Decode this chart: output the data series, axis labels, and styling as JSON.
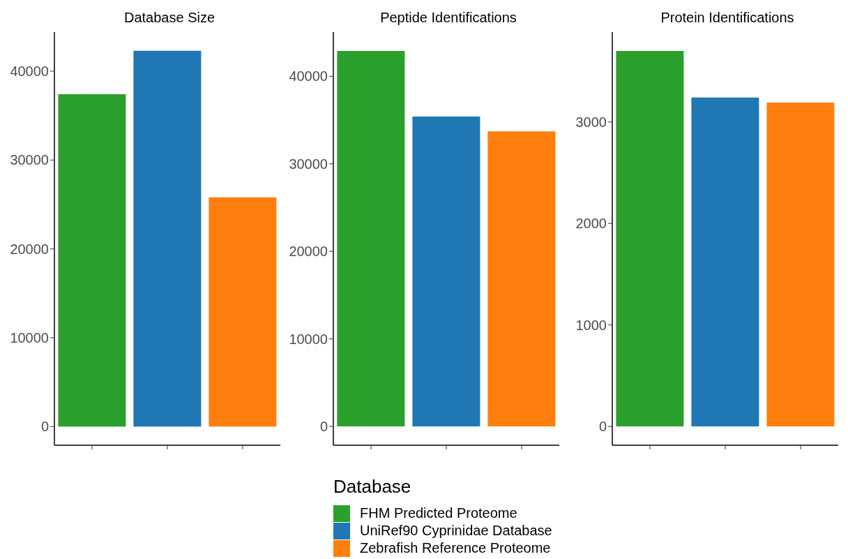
{
  "chart_data": [
    {
      "type": "bar",
      "title": "Database Size",
      "categories": [
        null,
        null,
        null
      ],
      "stacked": true,
      "tick_labels": "y",
      "ylim": [
        -2100,
        44400
      ],
      "yticks": [
        0,
        10000,
        20000,
        30000,
        40000
      ],
      "series": [
        {
          "color": "#2ca02c",
          "values": [
            37400,
            null,
            null
          ]
        },
        {
          "color": "#1f77b4",
          "values": [
            null,
            42300,
            null
          ]
        },
        {
          "color": "#ff7f0e",
          "values": [
            null,
            null,
            25800
          ]
        }
      ]
    },
    {
      "type": "bar",
      "title": "Peptide Identifications",
      "categories": [
        null,
        null,
        null
      ],
      "stacked": true,
      "tick_labels": "y",
      "ylim": [
        -2150,
        45050
      ],
      "yticks": [
        0,
        10000,
        20000,
        30000,
        40000
      ],
      "legend": "bottom",
      "legend_title": "Database",
      "series": [
        {
          "name": "FHM Predicted Proteome",
          "color": "#2ca02c",
          "values": [
            42900,
            null,
            null
          ]
        },
        {
          "name": "UniRef90 Cyprinidae Database",
          "color": "#1f77b4",
          "values": [
            null,
            35400,
            null
          ]
        },
        {
          "name": "Zebrafish Reference Proteome",
          "color": "#ff7f0e",
          "values": [
            null,
            null,
            33700
          ]
        }
      ]
    },
    {
      "type": "bar",
      "title": "Protein Identifications",
      "categories": [
        null,
        null,
        null
      ],
      "stacked": true,
      "tick_labels": "y",
      "ylim": [
        -185,
        3885
      ],
      "yticks": [
        0,
        1000,
        2000,
        3000
      ],
      "series": [
        {
          "color": "#2ca02c",
          "values": [
            3700,
            null,
            null
          ]
        },
        {
          "color": "#1f77b4",
          "values": [
            null,
            3240,
            null
          ]
        },
        {
          "color": "#ff7f0e",
          "values": [
            null,
            null,
            3190
          ]
        }
      ]
    }
  ]
}
